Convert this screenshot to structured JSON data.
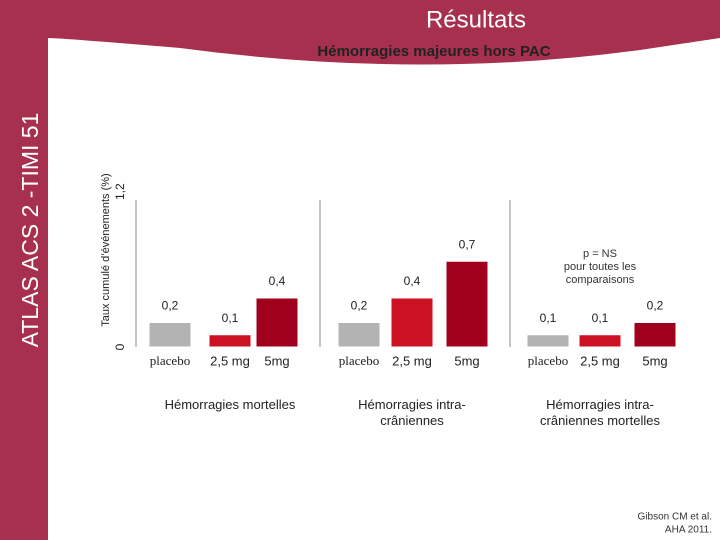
{
  "header": "Résultats",
  "side_title": "ATLAS ACS 2 -TIMI 51",
  "source": [
    "Gibson CM et al.",
    "AHA 2011."
  ],
  "chart_data": {
    "type": "bar",
    "title": "Hémorragies majeures hors PAC",
    "ylabel": "Taux cumulé d’événements (%)",
    "ylim": [
      0,
      1.2
    ],
    "yticks": [
      0,
      {
        "value": 1.2,
        "label": "1,2"
      }
    ],
    "categories": [
      "Hémorragies mortelles",
      "Hémorragies intra-crâniennes",
      "Hémorragies intra-crâniennes mortelles"
    ],
    "series": [
      {
        "name": "placebo",
        "color": "#b3b3b3",
        "values": [
          0.2,
          0.2,
          0.1
        ],
        "value_labels": [
          "0,2",
          "0,2",
          "0,1"
        ]
      },
      {
        "name": "2,5 mg",
        "color": "#cc1122",
        "values": [
          0.1,
          0.4,
          0.1
        ],
        "value_labels": [
          "0,1",
          "0,4",
          "0,1"
        ]
      },
      {
        "name": "5mg",
        "color": "#a0001c",
        "values": [
          0.4,
          0.7,
          0.2
        ],
        "value_labels": [
          "0,4",
          "0,7",
          "0,2"
        ]
      }
    ],
    "annotation": [
      "p = NS",
      "pour toutes les",
      "comparaisons"
    ]
  }
}
